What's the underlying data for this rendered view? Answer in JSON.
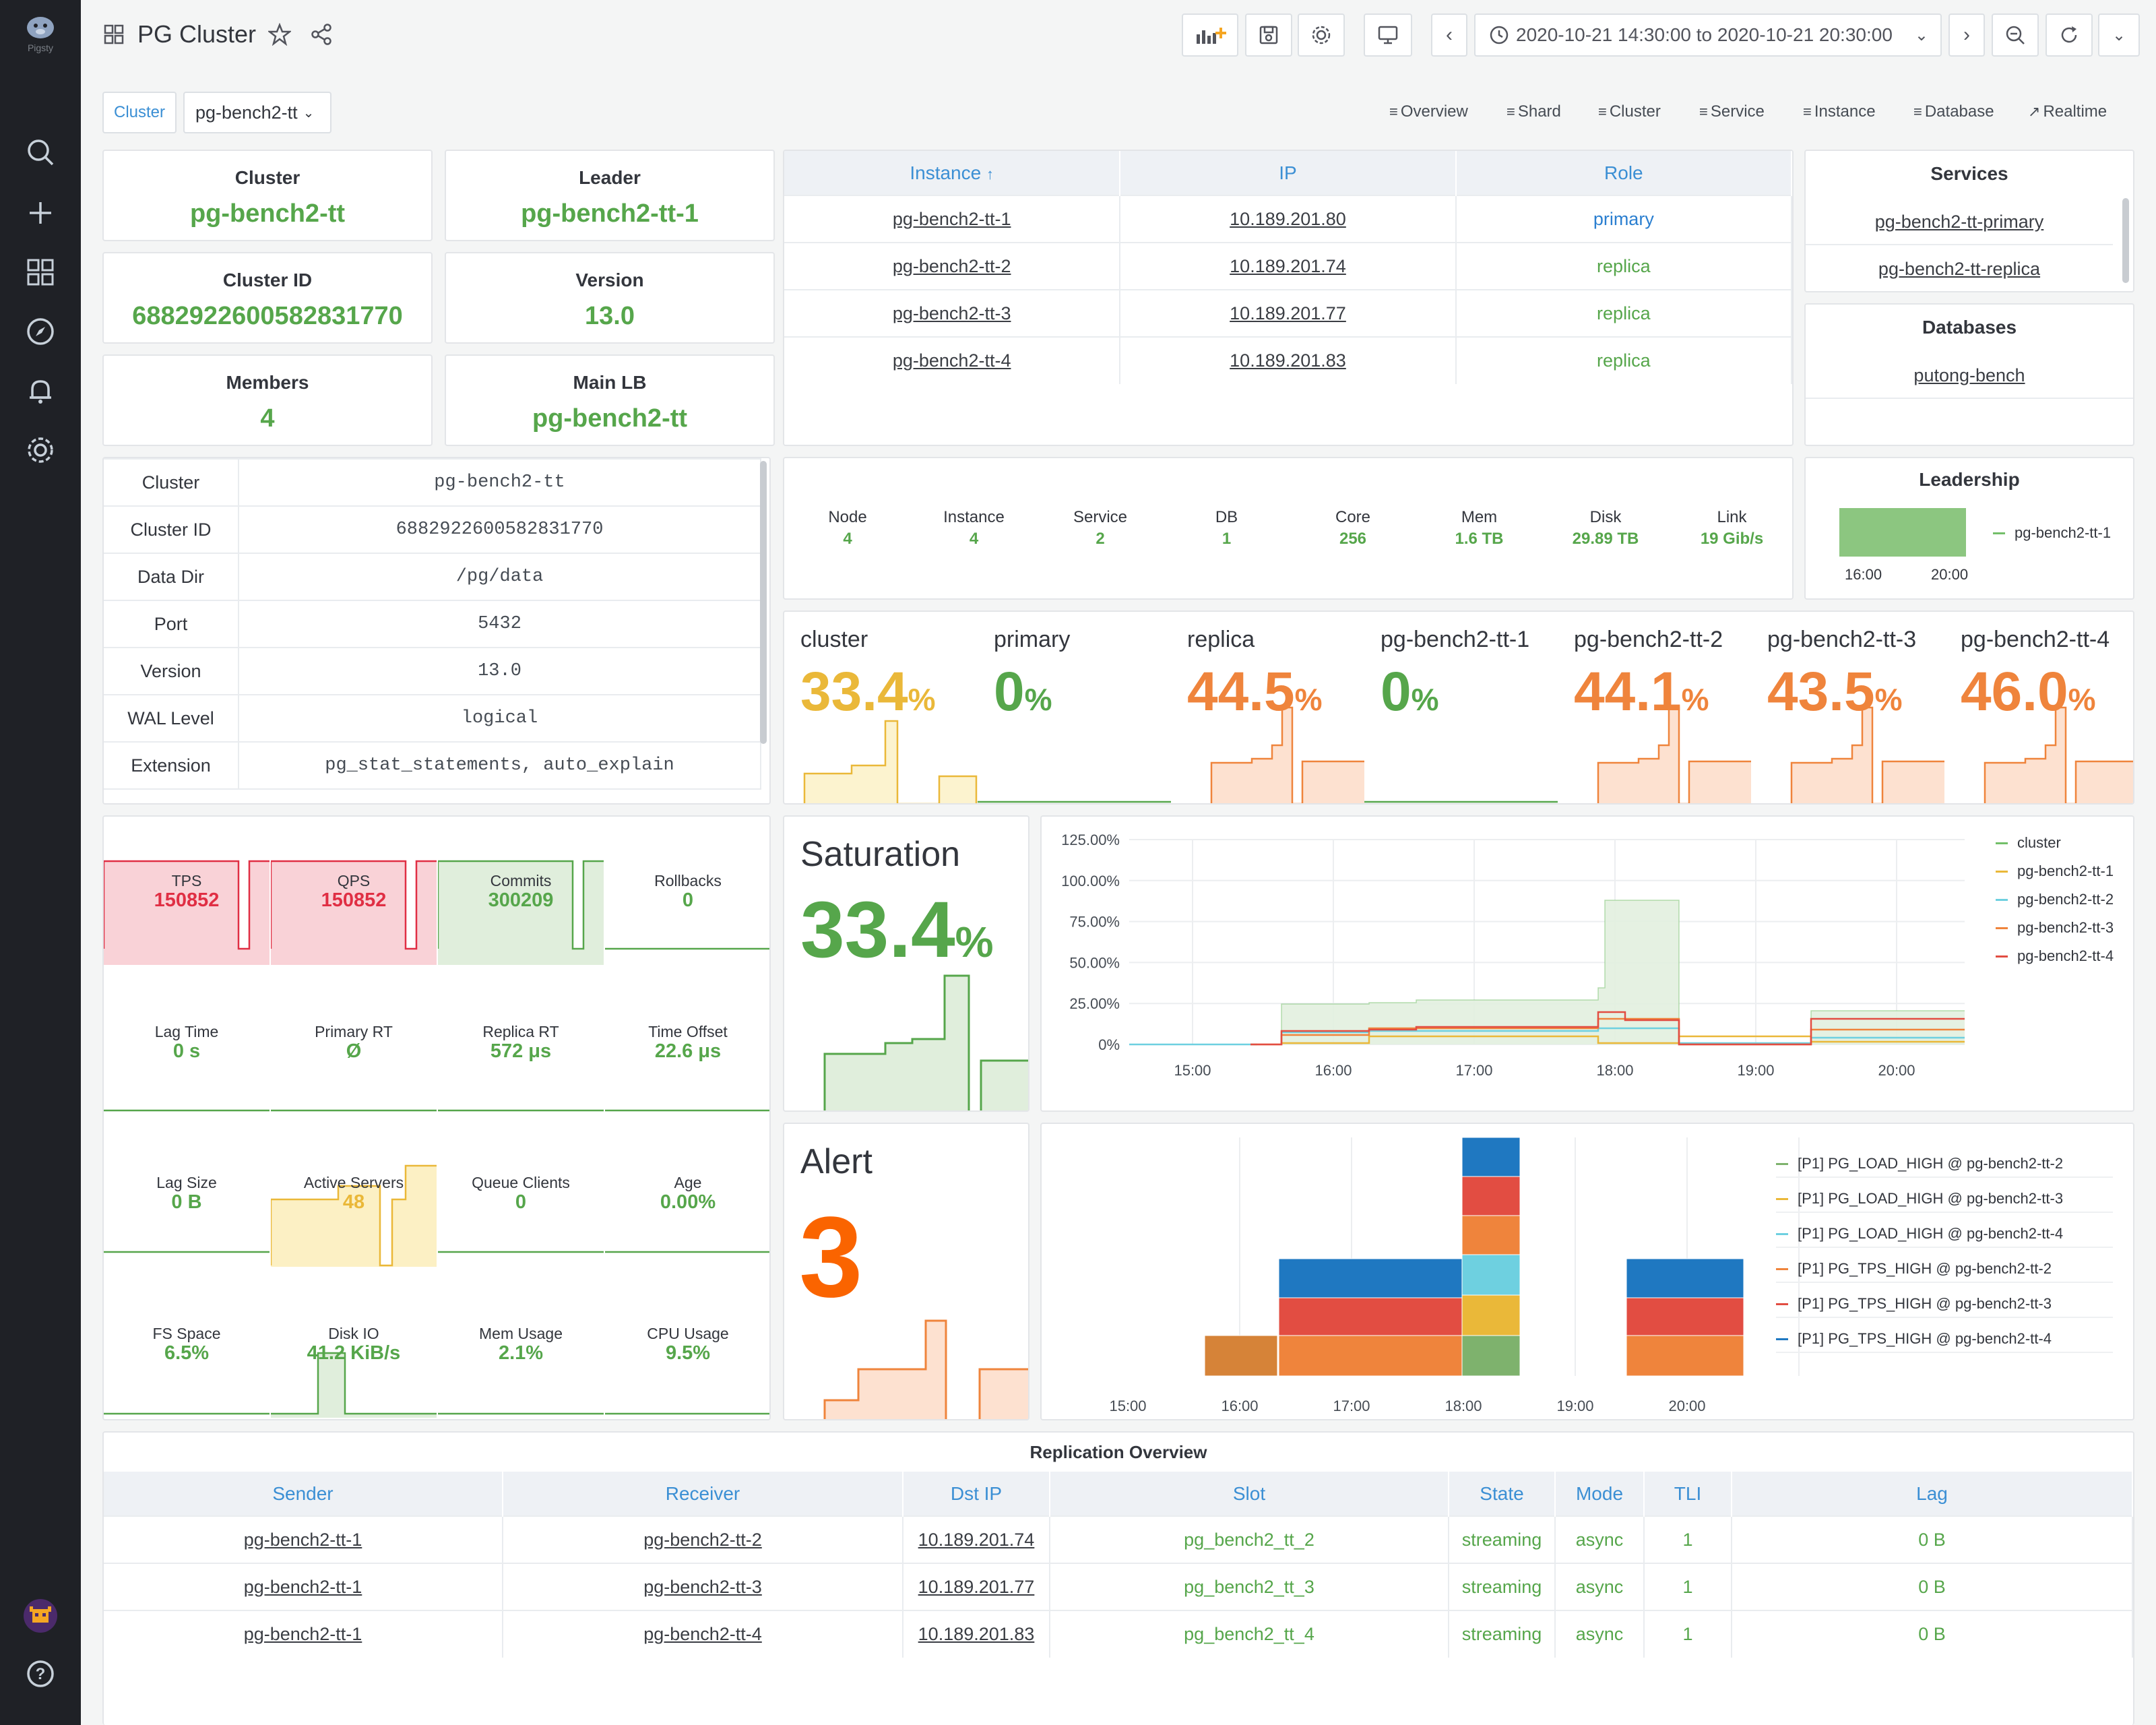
{
  "topbar": {
    "title": "PG Cluster",
    "time_range": "2020-10-21 14:30:00 to 2020-10-21 20:30:00"
  },
  "variables": {
    "label": "Cluster",
    "value": "pg-bench2-tt"
  },
  "links": [
    "Overview",
    "Shard",
    "Cluster",
    "Service",
    "Instance",
    "Database",
    "Realtime"
  ],
  "sidebar": {
    "logo_text": "Pigsty"
  },
  "stats": [
    {
      "title": "Cluster",
      "value": "pg-bench2-tt"
    },
    {
      "title": "Leader",
      "value": "pg-bench2-tt-1"
    },
    {
      "title": "Cluster ID",
      "value": "6882922600582831770"
    },
    {
      "title": "Version",
      "value": "13.0"
    },
    {
      "title": "Members",
      "value": "4"
    },
    {
      "title": "Main LB",
      "value": "pg-bench2-tt"
    }
  ],
  "instances": {
    "headers": [
      "Instance",
      "IP",
      "Role"
    ],
    "sort_arrow": "↑",
    "rows": [
      {
        "instance": "pg-bench2-tt-1",
        "ip": "10.189.201.80",
        "role": "primary"
      },
      {
        "instance": "pg-bench2-tt-2",
        "ip": "10.189.201.74",
        "role": "replica"
      },
      {
        "instance": "pg-bench2-tt-3",
        "ip": "10.189.201.77",
        "role": "replica"
      },
      {
        "instance": "pg-bench2-tt-4",
        "ip": "10.189.201.83",
        "role": "replica"
      }
    ]
  },
  "services": {
    "title": "Services",
    "items": [
      "pg-bench2-tt-primary",
      "pg-bench2-tt-replica"
    ]
  },
  "databases": {
    "title": "Databases",
    "items": [
      "putong-bench"
    ]
  },
  "config": {
    "rows": [
      {
        "k": "Cluster",
        "v": "pg-bench2-tt"
      },
      {
        "k": "Cluster ID",
        "v": "6882922600582831770"
      },
      {
        "k": "Data Dir",
        "v": "/pg/data"
      },
      {
        "k": "Port",
        "v": "5432"
      },
      {
        "k": "Version",
        "v": "13.0"
      },
      {
        "k": "WAL Level",
        "v": "logical"
      },
      {
        "k": "Extension",
        "v": "pg_stat_statements, auto_explain"
      }
    ]
  },
  "hardware": [
    {
      "l": "Node",
      "v": "4"
    },
    {
      "l": "Instance",
      "v": "4"
    },
    {
      "l": "Service",
      "v": "2"
    },
    {
      "l": "DB",
      "v": "1"
    },
    {
      "l": "Core",
      "v": "256"
    },
    {
      "l": "Mem",
      "v": "1.6 TB"
    },
    {
      "l": "Disk",
      "v": "29.89 TB"
    },
    {
      "l": "Link",
      "v": "19 Gib/s"
    }
  ],
  "leadership": {
    "title": "Leadership",
    "legend": "pg-bench2-tt-1",
    "ticks": [
      "16:00",
      "20:00"
    ]
  },
  "gauges": [
    {
      "name": "cluster",
      "value": "33.4",
      "unit": "%",
      "color": "#eab839",
      "fill": "#fcf3cf"
    },
    {
      "name": "primary",
      "value": "0",
      "unit": "%",
      "color": "#56a64b",
      "fill": "#e4f1e2"
    },
    {
      "name": "replica",
      "value": "44.5",
      "unit": "%",
      "color": "#ef843c",
      "fill": "#fde1d0"
    },
    {
      "name": "pg-bench2-tt-1",
      "value": "0",
      "unit": "%",
      "color": "#56a64b",
      "fill": "#e4f1e2"
    },
    {
      "name": "pg-bench2-tt-2",
      "value": "44.1",
      "unit": "%",
      "color": "#ef843c",
      "fill": "#fde1d0"
    },
    {
      "name": "pg-bench2-tt-3",
      "value": "43.5",
      "unit": "%",
      "color": "#ef843c",
      "fill": "#fde1d0"
    },
    {
      "name": "pg-bench2-tt-4",
      "value": "46.0",
      "unit": "%",
      "color": "#ef843c",
      "fill": "#fde1d0"
    }
  ],
  "metrics": [
    {
      "l": "TPS",
      "v": "150852",
      "c": "#e02f44",
      "bg": "#f9d2d7"
    },
    {
      "l": "QPS",
      "v": "150852",
      "c": "#e02f44",
      "bg": "#f9d2d7"
    },
    {
      "l": "Commits",
      "v": "300209",
      "c": "#56a64b",
      "bg": "#e0eedc"
    },
    {
      "l": "Rollbacks",
      "v": "0",
      "c": "#56a64b",
      "bg": ""
    },
    {
      "l": "Lag Time",
      "v": "0 s",
      "c": "#56a64b",
      "bg": ""
    },
    {
      "l": "Primary RT",
      "v": "Ø",
      "c": "#56a64b",
      "bg": ""
    },
    {
      "l": "Replica RT",
      "v": "572 μs",
      "c": "#56a64b",
      "bg": ""
    },
    {
      "l": "Time Offset",
      "v": "22.6 μs",
      "c": "#56a64b",
      "bg": ""
    },
    {
      "l": "Lag Size",
      "v": "0 B",
      "c": "#56a64b",
      "bg": ""
    },
    {
      "l": "Active Servers",
      "v": "48",
      "c": "#eab839",
      "bg": "#fcf0c4"
    },
    {
      "l": "Queue Clients",
      "v": "0",
      "c": "#56a64b",
      "bg": ""
    },
    {
      "l": "Age",
      "v": "0.00%",
      "c": "#56a64b",
      "bg": ""
    },
    {
      "l": "FS Space",
      "v": "6.5%",
      "c": "#56a64b",
      "bg": ""
    },
    {
      "l": "Disk IO",
      "v": "41.2 KiB/s",
      "c": "#56a64b",
      "bg": "#e0eedc"
    },
    {
      "l": "Mem Usage",
      "v": "2.1%",
      "c": "#56a64b",
      "bg": ""
    },
    {
      "l": "CPU Usage",
      "v": "9.5%",
      "c": "#56a64b",
      "bg": ""
    }
  ],
  "saturation": {
    "title": "Saturation",
    "value": "33.4",
    "unit": "%"
  },
  "alert": {
    "title": "Alert",
    "value": "3"
  },
  "chart_data": [
    {
      "type": "line",
      "title": "",
      "yticks": [
        "125.00%",
        "100.00%",
        "75.00%",
        "50.00%",
        "25.00%",
        "0%"
      ],
      "xticks": [
        "15:00",
        "16:00",
        "17:00",
        "18:00",
        "19:00",
        "20:00"
      ],
      "ylim": [
        0,
        125
      ],
      "legend": "right",
      "series": [
        {
          "name": "cluster",
          "color": "#73bf69"
        },
        {
          "name": "pg-bench2-tt-1",
          "color": "#eab839"
        },
        {
          "name": "pg-bench2-tt-2",
          "color": "#6ed0e0"
        },
        {
          "name": "pg-bench2-tt-3",
          "color": "#ef843c"
        },
        {
          "name": "pg-bench2-tt-4",
          "color": "#e24d42"
        }
      ]
    },
    {
      "type": "bar",
      "stacked": true,
      "xticks": [
        "15:00",
        "16:00",
        "17:00",
        "18:00",
        "19:00",
        "20:00"
      ],
      "legend": "right",
      "series": [
        {
          "name": "[P1] PG_LOAD_HIGH @ pg-bench2-tt-2",
          "color": "#7eb26d"
        },
        {
          "name": "[P1] PG_LOAD_HIGH @ pg-bench2-tt-3",
          "color": "#eab839"
        },
        {
          "name": "[P1] PG_LOAD_HIGH @ pg-bench2-tt-4",
          "color": "#6ed0e0"
        },
        {
          "name": "[P1] PG_TPS_HIGH @ pg-bench2-tt-2",
          "color": "#ef843c"
        },
        {
          "name": "[P1] PG_TPS_HIGH @ pg-bench2-tt-3",
          "color": "#e24d42"
        },
        {
          "name": "[P1] PG_TPS_HIGH @ pg-bench2-tt-4",
          "color": "#1f78c1"
        }
      ]
    }
  ],
  "replication": {
    "title": "Replication Overview",
    "headers": [
      "Sender",
      "Receiver",
      "Dst IP",
      "Slot",
      "State",
      "Mode",
      "TLI",
      "Lag"
    ],
    "rows": [
      {
        "sender": "pg-bench2-tt-1",
        "receiver": "pg-bench2-tt-2",
        "ip": "10.189.201.74",
        "slot": "pg_bench2_tt_2",
        "state": "streaming",
        "mode": "async",
        "tli": "1",
        "lag": "0 B"
      },
      {
        "sender": "pg-bench2-tt-1",
        "receiver": "pg-bench2-tt-3",
        "ip": "10.189.201.77",
        "slot": "pg_bench2_tt_3",
        "state": "streaming",
        "mode": "async",
        "tli": "1",
        "lag": "0 B"
      },
      {
        "sender": "pg-bench2-tt-1",
        "receiver": "pg-bench2-tt-4",
        "ip": "10.189.201.83",
        "slot": "pg_bench2_tt_4",
        "state": "streaming",
        "mode": "async",
        "tli": "1",
        "lag": "0 B"
      }
    ]
  }
}
